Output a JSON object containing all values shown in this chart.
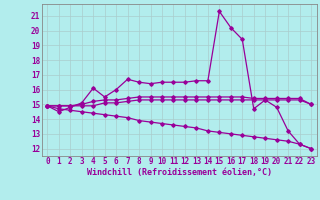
{
  "xlabel": "Windchill (Refroidissement éolien,°C)",
  "background_color": "#b2eded",
  "grid_color": "#aacccc",
  "line_color": "#990099",
  "xlim": [
    -0.5,
    23.5
  ],
  "ylim": [
    11.5,
    21.8
  ],
  "yticks": [
    12,
    13,
    14,
    15,
    16,
    17,
    18,
    19,
    20,
    21
  ],
  "xticks": [
    0,
    1,
    2,
    3,
    4,
    5,
    6,
    7,
    8,
    9,
    10,
    11,
    12,
    13,
    14,
    15,
    16,
    17,
    18,
    19,
    20,
    21,
    22,
    23
  ],
  "series": [
    [
      14.9,
      14.5,
      14.8,
      15.1,
      16.1,
      15.5,
      16.0,
      16.7,
      16.5,
      16.4,
      16.5,
      16.5,
      16.5,
      16.6,
      16.6,
      21.3,
      20.2,
      19.4,
      14.7,
      15.3,
      14.8,
      13.2,
      12.3,
      12.0
    ],
    [
      14.9,
      14.9,
      14.9,
      14.9,
      14.9,
      15.1,
      15.1,
      15.2,
      15.3,
      15.3,
      15.3,
      15.3,
      15.3,
      15.3,
      15.3,
      15.3,
      15.3,
      15.3,
      15.3,
      15.3,
      15.3,
      15.3,
      15.3,
      15.0
    ],
    [
      14.9,
      14.9,
      14.9,
      15.0,
      15.2,
      15.3,
      15.3,
      15.4,
      15.5,
      15.5,
      15.5,
      15.5,
      15.5,
      15.5,
      15.5,
      15.5,
      15.5,
      15.5,
      15.4,
      15.4,
      15.4,
      15.4,
      15.4,
      15.0
    ],
    [
      14.9,
      14.7,
      14.6,
      14.5,
      14.4,
      14.3,
      14.2,
      14.1,
      13.9,
      13.8,
      13.7,
      13.6,
      13.5,
      13.4,
      13.2,
      13.1,
      13.0,
      12.9,
      12.8,
      12.7,
      12.6,
      12.5,
      12.3,
      12.0
    ]
  ],
  "tick_fontsize": 5.5,
  "xlabel_fontsize": 6.0
}
